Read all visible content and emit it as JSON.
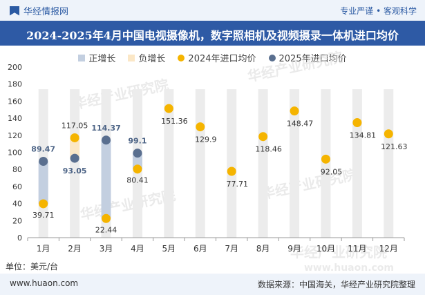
{
  "header": {
    "brand": "华经情报网",
    "tagline": "专业严谨 • 客观科学"
  },
  "chart_data": {
    "type": "bar",
    "title": "2024-2025年4月中国电视摄像机，数字照相机及视频摄录一体机进口均价",
    "unit": "单位：美元/台",
    "categories": [
      "1月",
      "2月",
      "3月",
      "4月",
      "5月",
      "6月",
      "7月",
      "8月",
      "9月",
      "10月",
      "11月",
      "12月"
    ],
    "ylim": [
      0,
      200
    ],
    "yticks": [
      0,
      20,
      40,
      60,
      80,
      100,
      120,
      140,
      160,
      180,
      200
    ],
    "legend": [
      {
        "name": "正增长",
        "color": "#c3cfe0",
        "shape": "rect"
      },
      {
        "name": "负增长",
        "color": "#fbe7c6",
        "shape": "rect"
      },
      {
        "name": "2024年进口均价",
        "color": "#f5b400",
        "shape": "dot"
      },
      {
        "name": "2025年进口均价",
        "color": "#5a6f8f",
        "shape": "dot"
      }
    ],
    "series": [
      {
        "name": "2024年进口均价",
        "values": [
          39.71,
          117.05,
          22.44,
          80.41,
          151.36,
          129.9,
          77.71,
          118.46,
          148.47,
          92.05,
          134.81,
          121.63
        ]
      },
      {
        "name": "2025年进口均价",
        "values": [
          89.47,
          93.05,
          114.37,
          99.1,
          null,
          null,
          null,
          null,
          null,
          null,
          null,
          null
        ]
      }
    ],
    "labels_2024": [
      "39.71",
      "117.05",
      "22.44",
      "80.41",
      "151.36",
      "129.9",
      "77.71",
      "118.46",
      "148.47",
      "92.05",
      "134.81",
      "121.63"
    ],
    "labels_2025": [
      "89.47",
      "93.05",
      "114.37",
      "99.1"
    ],
    "background_bar_top": 174,
    "colors": {
      "positive": "#c3cfe0",
      "negative": "#fbe7c6",
      "dot2024": "#f5b400",
      "dot2025": "#5a6f8f",
      "background_bar": "#ececec"
    }
  },
  "footer": {
    "site": "www.huaon.com",
    "source": "数据来源：中国海关，华经产业研究院整理"
  },
  "watermark": {
    "text1": "华经产业研究院",
    "text2": "www.huaon.com"
  }
}
